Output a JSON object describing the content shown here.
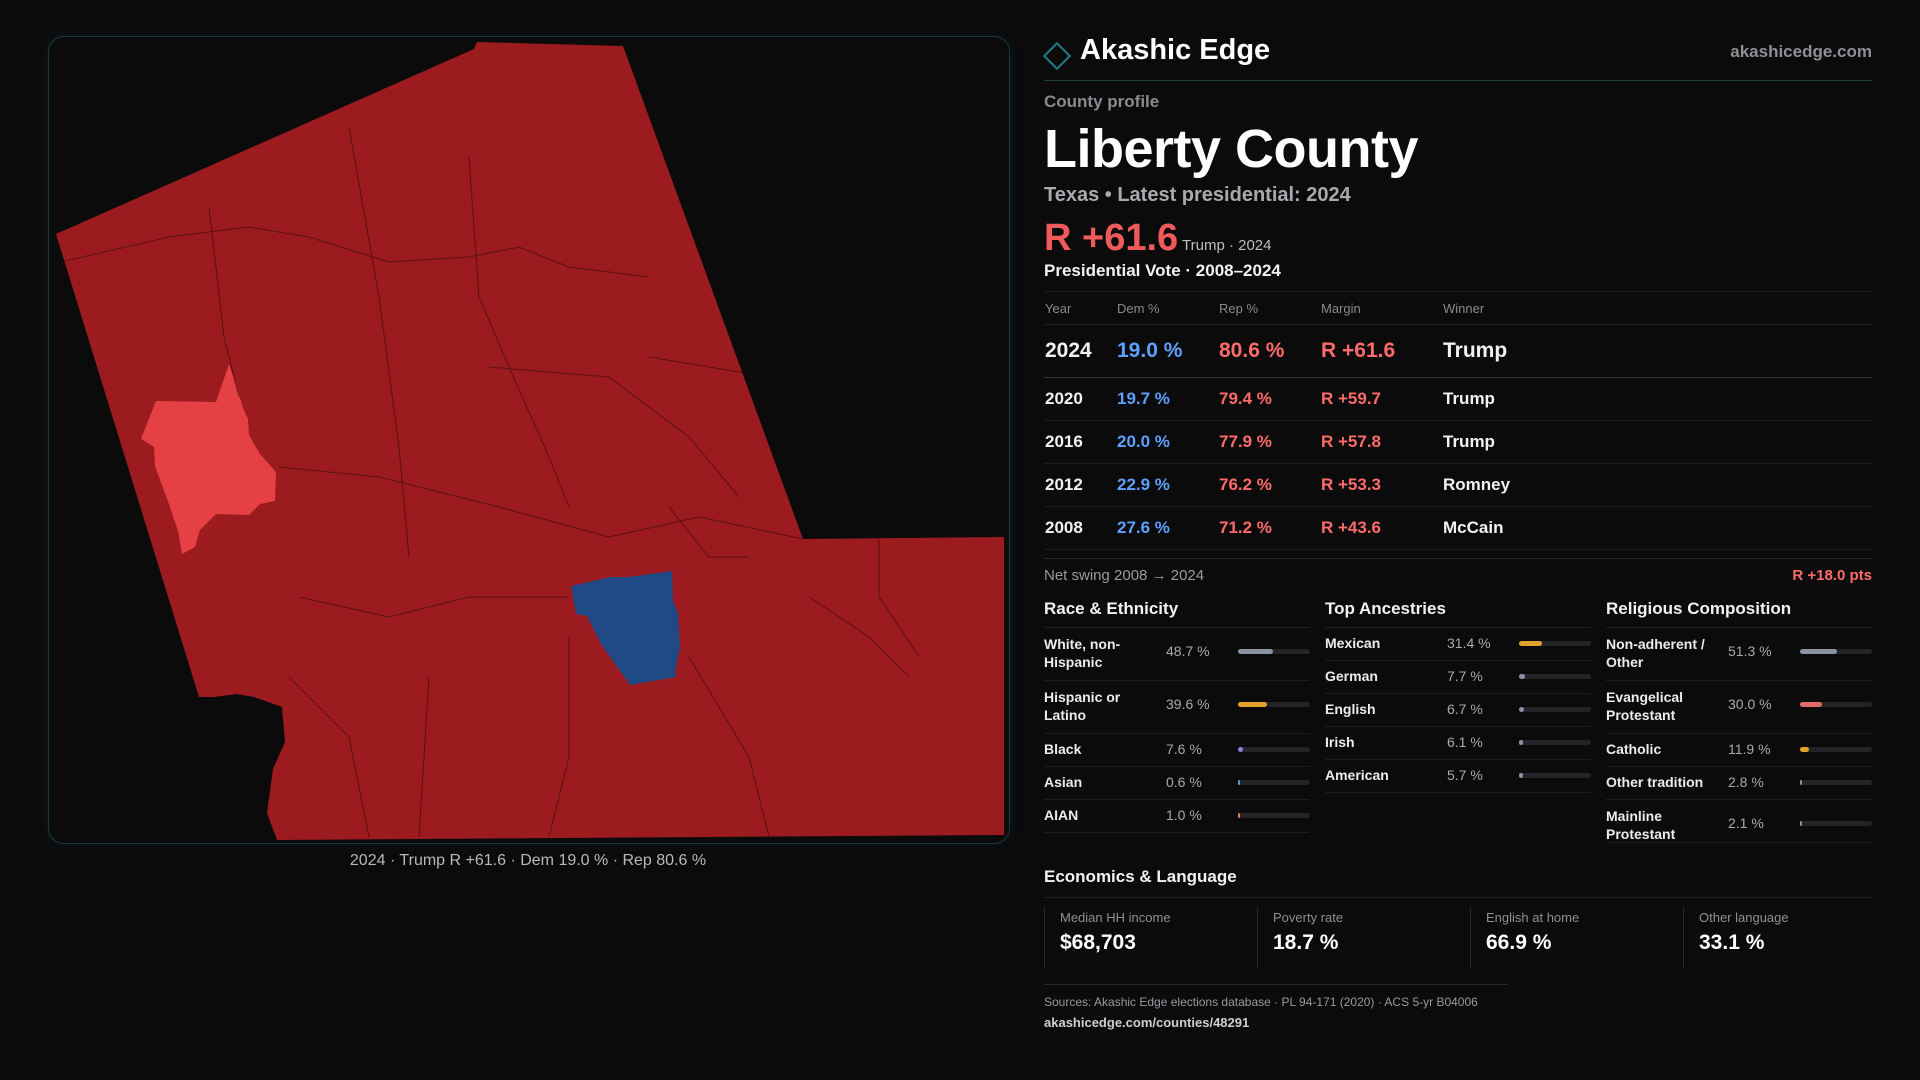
{
  "brand": {
    "name": "Akashic Edge",
    "url": "akashicedge.com",
    "accent": "#1f7f85"
  },
  "profile_label": "County profile",
  "county": {
    "name": "Liberty County",
    "subtitle": "Texas • Latest presidential: 2024"
  },
  "headline": {
    "margin": "R +61.6",
    "note": "Trump · 2024"
  },
  "presidential": {
    "title": "Presidential Vote · 2008–2024",
    "columns": [
      "Year",
      "Dem %",
      "Rep %",
      "Margin",
      "Winner"
    ],
    "rows": [
      {
        "year": "2024",
        "dem": "19.0 %",
        "rep": "80.6 %",
        "margin": "R +61.6",
        "winner": "Trump"
      },
      {
        "year": "2020",
        "dem": "19.7 %",
        "rep": "79.4 %",
        "margin": "R +59.7",
        "winner": "Trump"
      },
      {
        "year": "2016",
        "dem": "20.0 %",
        "rep": "77.9 %",
        "margin": "R +57.8",
        "winner": "Trump"
      },
      {
        "year": "2012",
        "dem": "22.9 %",
        "rep": "76.2 %",
        "margin": "R +53.3",
        "winner": "Romney"
      },
      {
        "year": "2008",
        "dem": "27.6 %",
        "rep": "71.2 %",
        "margin": "R +43.6",
        "winner": "McCain"
      }
    ]
  },
  "swing": {
    "label": "Net swing 2008 → 2024",
    "value": "R +18.0 pts"
  },
  "race": {
    "title": "Race & Ethnicity",
    "items": [
      {
        "label": "White, non-Hispanic",
        "pct": "48.7 %",
        "value": 48.7,
        "color": "#8b93a3"
      },
      {
        "label": "Hispanic or Latino",
        "pct": "39.6 %",
        "value": 39.6,
        "color": "#e2a12b"
      },
      {
        "label": "Black",
        "pct": "7.6 %",
        "value": 7.6,
        "color": "#8c7fe0"
      },
      {
        "label": "Asian",
        "pct": "0.6 %",
        "value": 0.6,
        "color": "#4fa3d9"
      },
      {
        "label": "AIAN",
        "pct": "1.0 %",
        "value": 1.0,
        "color": "#d9824f"
      }
    ]
  },
  "ancestry": {
    "title": "Top Ancestries",
    "items": [
      {
        "label": "Mexican",
        "pct": "31.4 %",
        "value": 31.4,
        "color": "#e2a12b"
      },
      {
        "label": "German",
        "pct": "7.7 %",
        "value": 7.7,
        "color": "#8b93a3"
      },
      {
        "label": "English",
        "pct": "6.7 %",
        "value": 6.7,
        "color": "#8b93a3"
      },
      {
        "label": "Irish",
        "pct": "6.1 %",
        "value": 6.1,
        "color": "#8b93a3"
      },
      {
        "label": "American",
        "pct": "5.7 %",
        "value": 5.7,
        "color": "#8b93a3"
      }
    ]
  },
  "religion": {
    "title": "Religious Composition",
    "items": [
      {
        "label": "Non-adherent / Other",
        "pct": "51.3 %",
        "value": 51.3,
        "color": "#8b93a3"
      },
      {
        "label": "Evangelical Protestant",
        "pct": "30.0 %",
        "value": 30.0,
        "color": "#e26b6b"
      },
      {
        "label": "Catholic",
        "pct": "11.9 %",
        "value": 11.9,
        "color": "#e2a12b"
      },
      {
        "label": "Other tradition",
        "pct": "2.8 %",
        "value": 2.8,
        "color": "#8b93a3"
      },
      {
        "label": "Mainline Protestant",
        "pct": "2.1 %",
        "value": 2.1,
        "color": "#8b93a3"
      }
    ]
  },
  "economics": {
    "title": "Economics & Language",
    "items": [
      {
        "label": "Median HH income",
        "value": "$68,703"
      },
      {
        "label": "Poverty rate",
        "value": "18.7 %"
      },
      {
        "label": "English at home",
        "value": "66.9 %"
      },
      {
        "label": "Other language",
        "value": "33.1 %"
      }
    ]
  },
  "sources": "Sources: Akashic Edge elections database · PL 94-171 (2020) · ACS 5-yr B04006",
  "source_url": "akashicedge.com/counties/48291",
  "map": {
    "caption": "2024 · Trump R +61.6 · Dem 19.0 % · Rep 80.6 %",
    "colors": {
      "rep": "#9c1b1f",
      "rep_light": "#e54044",
      "dem": "#1f4a85"
    }
  }
}
